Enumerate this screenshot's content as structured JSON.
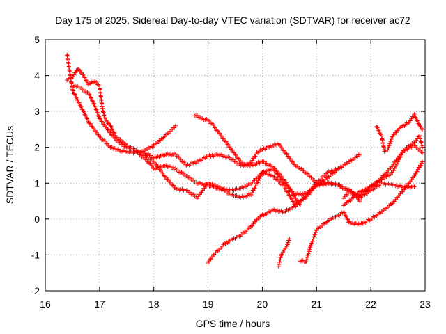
{
  "chart_data": {
    "type": "scatter",
    "title": "Day 175 of 2025, Sidereal Day-to-day VTEC variation (SDTVAR) for receiver ac72",
    "xlabel": "GPS time / hours",
    "ylabel": "SDTVAR / TECUs",
    "xlim": [
      16,
      23
    ],
    "ylim": [
      -2,
      5
    ],
    "xticks": [
      "16",
      "17",
      "18",
      "19",
      "20",
      "21",
      "22",
      "23"
    ],
    "yticks": [
      "-2",
      "-1",
      "0",
      "1",
      "2",
      "3",
      "4",
      "5"
    ],
    "grid": true,
    "marker": "+",
    "color": "#ff0000",
    "series": [
      {
        "name": "track-1",
        "points": [
          [
            16.4,
            4.6
          ],
          [
            16.45,
            4.1
          ],
          [
            16.5,
            3.6
          ],
          [
            16.6,
            3.3
          ],
          [
            16.7,
            3.0
          ],
          [
            16.8,
            2.7
          ],
          [
            16.9,
            2.5
          ],
          [
            17.0,
            2.3
          ],
          [
            17.1,
            2.15
          ],
          [
            17.2,
            2.0
          ],
          [
            17.4,
            1.9
          ],
          [
            17.6,
            1.85
          ],
          [
            17.8,
            1.9
          ],
          [
            18.0,
            2.05
          ],
          [
            18.2,
            2.3
          ],
          [
            18.4,
            2.6
          ]
        ]
      },
      {
        "name": "track-2",
        "points": [
          [
            16.4,
            3.9
          ],
          [
            16.5,
            3.95
          ],
          [
            16.6,
            4.2
          ],
          [
            16.7,
            4.0
          ],
          [
            16.8,
            3.75
          ],
          [
            16.9,
            3.85
          ],
          [
            17.0,
            3.7
          ],
          [
            17.05,
            3.1
          ],
          [
            17.1,
            2.8
          ],
          [
            17.2,
            2.6
          ],
          [
            17.3,
            2.3
          ],
          [
            17.5,
            2.05
          ],
          [
            17.7,
            1.9
          ],
          [
            17.9,
            1.8
          ],
          [
            18.0,
            1.7
          ],
          [
            18.2,
            1.8
          ],
          [
            18.4,
            1.8
          ],
          [
            18.6,
            1.5
          ],
          [
            18.8,
            1.6
          ],
          [
            19.0,
            1.75
          ],
          [
            19.2,
            1.8
          ],
          [
            19.4,
            1.7
          ],
          [
            19.6,
            1.5
          ],
          [
            19.8,
            1.5
          ],
          [
            20.0,
            1.6
          ],
          [
            20.2,
            1.45
          ],
          [
            20.4,
            1.1
          ],
          [
            20.6,
            0.6
          ],
          [
            20.7,
            0.4
          ]
        ]
      },
      {
        "name": "track-3",
        "points": [
          [
            16.5,
            3.7
          ],
          [
            16.6,
            3.7
          ],
          [
            16.8,
            3.5
          ],
          [
            16.9,
            3.2
          ],
          [
            17.0,
            2.8
          ],
          [
            17.1,
            2.6
          ],
          [
            17.2,
            2.4
          ],
          [
            17.3,
            2.2
          ],
          [
            17.5,
            2.0
          ],
          [
            17.7,
            1.85
          ],
          [
            17.9,
            1.6
          ],
          [
            18.0,
            1.4
          ],
          [
            18.2,
            1.5
          ],
          [
            18.4,
            1.4
          ],
          [
            18.6,
            1.2
          ],
          [
            18.8,
            1.0
          ],
          [
            19.0,
            0.95
          ],
          [
            19.2,
            0.85
          ],
          [
            19.4,
            0.8
          ],
          [
            19.6,
            0.85
          ],
          [
            19.8,
            1.0
          ],
          [
            20.0,
            1.3
          ],
          [
            20.2,
            1.2
          ],
          [
            20.4,
            0.9
          ],
          [
            20.6,
            0.4
          ],
          [
            20.8,
            0.6
          ],
          [
            21.0,
            0.95
          ],
          [
            21.2,
            1.15
          ],
          [
            21.4,
            1.4
          ],
          [
            21.6,
            1.6
          ],
          [
            21.8,
            1.8
          ]
        ]
      },
      {
        "name": "track-4",
        "points": [
          [
            17.8,
            1.8
          ],
          [
            18.0,
            1.6
          ],
          [
            18.2,
            1.2
          ],
          [
            18.4,
            0.85
          ],
          [
            18.6,
            0.8
          ],
          [
            18.8,
            0.6
          ],
          [
            19.0,
            1.0
          ],
          [
            19.2,
            0.9
          ],
          [
            19.4,
            0.7
          ],
          [
            19.6,
            0.6
          ],
          [
            19.8,
            0.7
          ],
          [
            19.9,
            1.0
          ],
          [
            20.0,
            1.3
          ],
          [
            20.2,
            1.4
          ],
          [
            20.4,
            1.0
          ],
          [
            20.6,
            0.7
          ],
          [
            20.8,
            0.7
          ],
          [
            21.0,
            0.95
          ],
          [
            21.2,
            1.0
          ],
          [
            21.4,
            0.95
          ],
          [
            21.6,
            0.8
          ],
          [
            21.8,
            0.6
          ],
          [
            22.0,
            0.8
          ],
          [
            22.2,
            1.0
          ],
          [
            22.4,
            0.95
          ],
          [
            22.6,
            0.9
          ],
          [
            22.8,
            0.9
          ]
        ]
      },
      {
        "name": "track-5",
        "points": [
          [
            18.75,
            2.9
          ],
          [
            18.9,
            2.8
          ],
          [
            19.0,
            2.75
          ],
          [
            19.1,
            2.6
          ],
          [
            19.2,
            2.4
          ],
          [
            19.3,
            2.2
          ],
          [
            19.4,
            2.0
          ],
          [
            19.5,
            1.8
          ],
          [
            19.6,
            1.6
          ],
          [
            19.7,
            1.5
          ],
          [
            19.8,
            1.6
          ],
          [
            19.9,
            1.85
          ],
          [
            20.0,
            1.95
          ],
          [
            20.1,
            2.0
          ],
          [
            20.2,
            2.05
          ],
          [
            20.3,
            2.1
          ],
          [
            20.4,
            1.9
          ],
          [
            20.5,
            1.7
          ],
          [
            20.6,
            1.5
          ],
          [
            20.7,
            1.4
          ],
          [
            20.8,
            1.3
          ],
          [
            20.9,
            1.15
          ],
          [
            21.0,
            1.0
          ],
          [
            21.1,
            0.95
          ],
          [
            21.2,
            1.0
          ],
          [
            21.3,
            1.0
          ],
          [
            21.4,
            0.95
          ],
          [
            21.5,
            0.85
          ],
          [
            21.6,
            0.8
          ],
          [
            21.7,
            0.7
          ],
          [
            21.8,
            0.5
          ]
        ]
      },
      {
        "name": "track-6",
        "points": [
          [
            19.0,
            -1.2
          ],
          [
            19.1,
            -1.0
          ],
          [
            19.2,
            -0.85
          ],
          [
            19.3,
            -0.7
          ],
          [
            19.4,
            -0.6
          ],
          [
            19.6,
            -0.45
          ],
          [
            19.8,
            -0.2
          ],
          [
            19.9,
            0.0
          ],
          [
            20.0,
            0.1
          ],
          [
            20.2,
            0.25
          ],
          [
            20.4,
            0.2
          ],
          [
            20.6,
            0.35
          ],
          [
            20.8,
            0.65
          ],
          [
            21.0,
            1.0
          ],
          [
            21.2,
            1.3
          ],
          [
            21.4,
            1.4
          ]
        ]
      },
      {
        "name": "track-7",
        "points": [
          [
            20.3,
            -1.3
          ],
          [
            20.35,
            -1.0
          ],
          [
            20.45,
            -0.75
          ],
          [
            20.5,
            -0.55
          ]
        ]
      },
      {
        "name": "track-8",
        "points": [
          [
            20.7,
            -1.15
          ],
          [
            20.8,
            -1.2
          ],
          [
            20.85,
            -0.95
          ],
          [
            20.9,
            -0.7
          ],
          [
            21.0,
            -0.3
          ],
          [
            21.2,
            -0.05
          ],
          [
            21.4,
            0.1
          ],
          [
            21.5,
            0.2
          ],
          [
            21.6,
            -0.1
          ],
          [
            21.8,
            -0.15
          ],
          [
            22.0,
            0.0
          ],
          [
            22.2,
            0.2
          ],
          [
            22.4,
            0.45
          ],
          [
            22.6,
            0.8
          ],
          [
            22.8,
            1.2
          ],
          [
            22.95,
            1.6
          ]
        ]
      },
      {
        "name": "track-9",
        "points": [
          [
            21.5,
            0.6
          ],
          [
            21.6,
            0.75
          ],
          [
            21.8,
            0.65
          ],
          [
            22.0,
            0.9
          ],
          [
            22.2,
            1.15
          ],
          [
            22.4,
            1.5
          ],
          [
            22.6,
            1.9
          ],
          [
            22.8,
            2.15
          ],
          [
            22.9,
            2.3
          ],
          [
            22.95,
            2.0
          ]
        ]
      },
      {
        "name": "track-10",
        "points": [
          [
            21.5,
            0.4
          ],
          [
            21.6,
            0.5
          ],
          [
            21.7,
            0.65
          ],
          [
            21.8,
            0.75
          ],
          [
            22.0,
            0.9
          ],
          [
            22.1,
            1.0
          ],
          [
            22.2,
            1.1
          ],
          [
            22.4,
            1.3
          ],
          [
            22.6,
            1.9
          ],
          [
            22.8,
            2.05
          ],
          [
            22.95,
            1.85
          ]
        ]
      },
      {
        "name": "track-11",
        "points": [
          [
            22.1,
            2.6
          ],
          [
            22.2,
            2.3
          ],
          [
            22.25,
            1.9
          ],
          [
            22.3,
            1.9
          ],
          [
            22.4,
            2.3
          ],
          [
            22.5,
            2.5
          ],
          [
            22.6,
            2.6
          ],
          [
            22.7,
            2.7
          ],
          [
            22.8,
            2.9
          ],
          [
            22.9,
            2.6
          ],
          [
            22.95,
            2.5
          ]
        ]
      }
    ]
  }
}
